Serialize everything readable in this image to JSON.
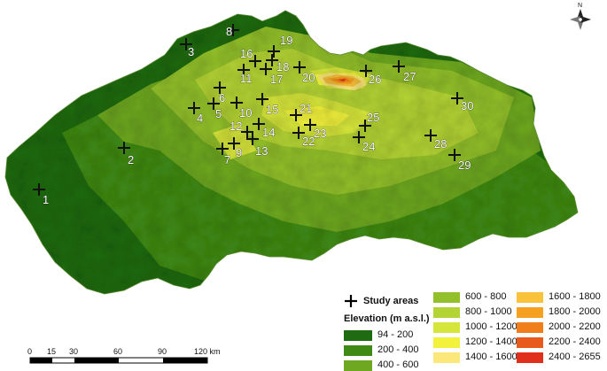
{
  "north_label": "N",
  "legend": {
    "study_areas_label": "Study areas",
    "elevation_title": "Elevation (m a.s.l.)",
    "classes": [
      {
        "label": "94 - 200",
        "color": "#1e6b12"
      },
      {
        "label": "200 - 400",
        "color": "#3f8a14"
      },
      {
        "label": "400 - 600",
        "color": "#6ea820"
      },
      {
        "label": "600 - 800",
        "color": "#93c02a"
      },
      {
        "label": "800 - 1000",
        "color": "#b4d334"
      },
      {
        "label": "1000 - 1200",
        "color": "#d6e53a"
      },
      {
        "label": "1200 - 1400",
        "color": "#f2f23c"
      },
      {
        "label": "1400 - 1600",
        "color": "#fbe77a"
      },
      {
        "label": "1600 - 1800",
        "color": "#f9c23b"
      },
      {
        "label": "1800 - 2000",
        "color": "#f5a020"
      },
      {
        "label": "2000 - 2200",
        "color": "#f07e1a"
      },
      {
        "label": "2200 - 2400",
        "color": "#e85a1c"
      },
      {
        "label": "2400 - 2655",
        "color": "#e0301c"
      }
    ]
  },
  "scale_bar": {
    "ticks": [
      "0",
      "15",
      "30",
      "60",
      "90",
      "120 km"
    ]
  },
  "study_sites": [
    "1",
    "2",
    "3",
    "4",
    "5",
    "6",
    "7",
    "8",
    "9",
    "10",
    "11",
    "12",
    "13",
    "14",
    "15",
    "16",
    "17",
    "18",
    "19",
    "20",
    "21",
    "22",
    "23",
    "24",
    "25",
    "26",
    "27",
    "28",
    "29",
    "30"
  ]
}
